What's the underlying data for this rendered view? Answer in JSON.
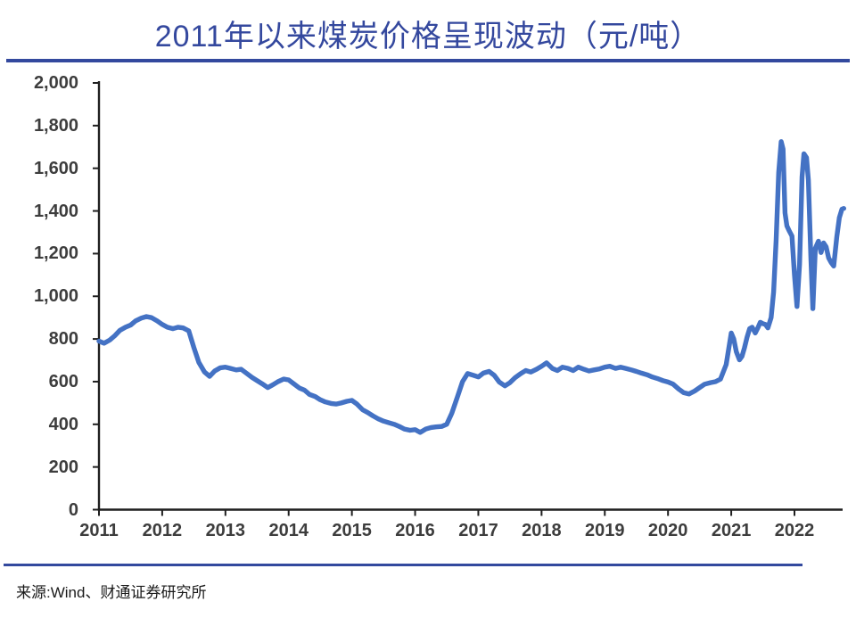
{
  "page": {
    "title": "2011年以来煤炭价格呈现波动（元/吨）",
    "source_note": "来源:Wind、财通证券研究所"
  },
  "colors": {
    "title": "#34489E",
    "divider": "#33499E",
    "series_line": "#4472C4",
    "axis": "#1F1F1F",
    "tick_label": "#3D3D3D"
  },
  "chart_data": {
    "type": "line",
    "title": "2011年以来煤炭价格呈现波动（元/吨）",
    "unit": "元/吨",
    "grid": false,
    "legend_position": "none",
    "xlim": [
      2011,
      2022.8
    ],
    "ylim": [
      0,
      2000
    ],
    "y_tick_labels": [
      "2,000",
      "1,800",
      "1,600",
      "1,400",
      "1,200",
      "1,000",
      "800",
      "600",
      "400",
      "200",
      "0"
    ],
    "x_tick_labels": [
      "2011",
      "2012",
      "2013",
      "2014",
      "2015",
      "2016",
      "2017",
      "2018",
      "2019",
      "2020",
      "2021",
      "2022"
    ],
    "series": [
      {
        "name": "煤炭价格(元/吨)",
        "points": [
          [
            2011.0,
            790
          ],
          [
            2011.08,
            780
          ],
          [
            2011.17,
            795
          ],
          [
            2011.25,
            815
          ],
          [
            2011.33,
            840
          ],
          [
            2011.42,
            855
          ],
          [
            2011.5,
            865
          ],
          [
            2011.58,
            885
          ],
          [
            2011.67,
            898
          ],
          [
            2011.75,
            905
          ],
          [
            2011.83,
            900
          ],
          [
            2011.92,
            885
          ],
          [
            2012.0,
            868
          ],
          [
            2012.08,
            855
          ],
          [
            2012.17,
            848
          ],
          [
            2012.25,
            855
          ],
          [
            2012.33,
            852
          ],
          [
            2012.42,
            838
          ],
          [
            2012.5,
            760
          ],
          [
            2012.58,
            690
          ],
          [
            2012.67,
            645
          ],
          [
            2012.75,
            625
          ],
          [
            2012.83,
            650
          ],
          [
            2012.92,
            665
          ],
          [
            2013.0,
            668
          ],
          [
            2013.08,
            662
          ],
          [
            2013.17,
            655
          ],
          [
            2013.25,
            658
          ],
          [
            2013.33,
            640
          ],
          [
            2013.42,
            620
          ],
          [
            2013.5,
            605
          ],
          [
            2013.58,
            590
          ],
          [
            2013.67,
            572
          ],
          [
            2013.75,
            585
          ],
          [
            2013.83,
            600
          ],
          [
            2013.92,
            612
          ],
          [
            2014.0,
            608
          ],
          [
            2014.08,
            590
          ],
          [
            2014.17,
            570
          ],
          [
            2014.25,
            560
          ],
          [
            2014.33,
            540
          ],
          [
            2014.42,
            530
          ],
          [
            2014.5,
            515
          ],
          [
            2014.58,
            505
          ],
          [
            2014.67,
            498
          ],
          [
            2014.75,
            495
          ],
          [
            2014.83,
            500
          ],
          [
            2014.92,
            508
          ],
          [
            2015.0,
            512
          ],
          [
            2015.08,
            495
          ],
          [
            2015.17,
            468
          ],
          [
            2015.25,
            455
          ],
          [
            2015.33,
            440
          ],
          [
            2015.42,
            425
          ],
          [
            2015.5,
            415
          ],
          [
            2015.58,
            408
          ],
          [
            2015.67,
            400
          ],
          [
            2015.75,
            390
          ],
          [
            2015.83,
            378
          ],
          [
            2015.92,
            372
          ],
          [
            2016.0,
            375
          ],
          [
            2016.08,
            362
          ],
          [
            2016.17,
            378
          ],
          [
            2016.25,
            385
          ],
          [
            2016.33,
            388
          ],
          [
            2016.42,
            390
          ],
          [
            2016.5,
            400
          ],
          [
            2016.58,
            452
          ],
          [
            2016.67,
            530
          ],
          [
            2016.75,
            600
          ],
          [
            2016.83,
            638
          ],
          [
            2016.92,
            630
          ],
          [
            2017.0,
            622
          ],
          [
            2017.08,
            640
          ],
          [
            2017.17,
            648
          ],
          [
            2017.25,
            630
          ],
          [
            2017.33,
            598
          ],
          [
            2017.42,
            580
          ],
          [
            2017.5,
            595
          ],
          [
            2017.58,
            618
          ],
          [
            2017.67,
            638
          ],
          [
            2017.75,
            652
          ],
          [
            2017.83,
            645
          ],
          [
            2017.92,
            658
          ],
          [
            2018.0,
            672
          ],
          [
            2018.08,
            688
          ],
          [
            2018.17,
            662
          ],
          [
            2018.25,
            652
          ],
          [
            2018.33,
            668
          ],
          [
            2018.42,
            662
          ],
          [
            2018.5,
            652
          ],
          [
            2018.58,
            668
          ],
          [
            2018.67,
            658
          ],
          [
            2018.75,
            650
          ],
          [
            2018.83,
            655
          ],
          [
            2018.92,
            660
          ],
          [
            2019.0,
            668
          ],
          [
            2019.08,
            672
          ],
          [
            2019.17,
            662
          ],
          [
            2019.25,
            668
          ],
          [
            2019.33,
            662
          ],
          [
            2019.42,
            655
          ],
          [
            2019.5,
            648
          ],
          [
            2019.58,
            640
          ],
          [
            2019.67,
            632
          ],
          [
            2019.75,
            622
          ],
          [
            2019.83,
            615
          ],
          [
            2019.92,
            605
          ],
          [
            2020.0,
            598
          ],
          [
            2020.08,
            588
          ],
          [
            2020.17,
            565
          ],
          [
            2020.25,
            548
          ],
          [
            2020.33,
            542
          ],
          [
            2020.42,
            556
          ],
          [
            2020.5,
            572
          ],
          [
            2020.58,
            588
          ],
          [
            2020.67,
            595
          ],
          [
            2020.75,
            600
          ],
          [
            2020.83,
            612
          ],
          [
            2020.92,
            680
          ],
          [
            2021.0,
            828
          ],
          [
            2021.04,
            800
          ],
          [
            2021.08,
            740
          ],
          [
            2021.13,
            702
          ],
          [
            2021.17,
            718
          ],
          [
            2021.21,
            760
          ],
          [
            2021.25,
            808
          ],
          [
            2021.29,
            848
          ],
          [
            2021.33,
            855
          ],
          [
            2021.38,
            828
          ],
          [
            2021.42,
            852
          ],
          [
            2021.46,
            878
          ],
          [
            2021.5,
            872
          ],
          [
            2021.54,
            868
          ],
          [
            2021.58,
            852
          ],
          [
            2021.63,
            900
          ],
          [
            2021.67,
            1020
          ],
          [
            2021.71,
            1260
          ],
          [
            2021.75,
            1580
          ],
          [
            2021.79,
            1725
          ],
          [
            2021.82,
            1690
          ],
          [
            2021.85,
            1390
          ],
          [
            2021.88,
            1330
          ],
          [
            2021.92,
            1305
          ],
          [
            2021.96,
            1282
          ],
          [
            2022.0,
            1100
          ],
          [
            2022.04,
            952
          ],
          [
            2022.08,
            1150
          ],
          [
            2022.12,
            1560
          ],
          [
            2022.15,
            1668
          ],
          [
            2022.19,
            1650
          ],
          [
            2022.22,
            1545
          ],
          [
            2022.26,
            1180
          ],
          [
            2022.29,
            942
          ],
          [
            2022.33,
            1225
          ],
          [
            2022.38,
            1258
          ],
          [
            2022.42,
            1205
          ],
          [
            2022.46,
            1250
          ],
          [
            2022.5,
            1232
          ],
          [
            2022.54,
            1180
          ],
          [
            2022.58,
            1158
          ],
          [
            2022.62,
            1142
          ],
          [
            2022.67,
            1280
          ],
          [
            2022.71,
            1368
          ],
          [
            2022.75,
            1408
          ],
          [
            2022.78,
            1412
          ]
        ]
      }
    ]
  }
}
